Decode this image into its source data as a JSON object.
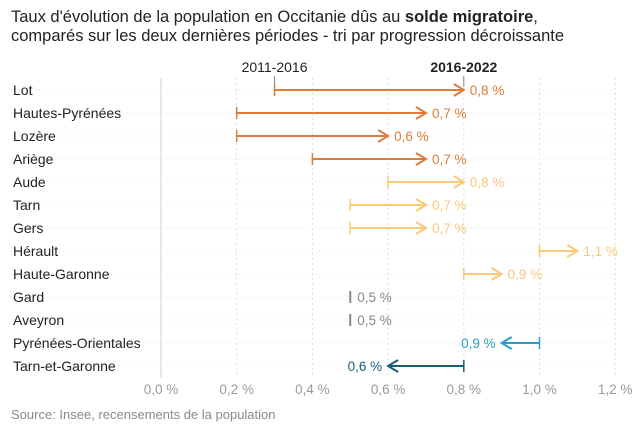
{
  "title": {
    "part1": "Taux d'évolution de la population en Occitanie dûs au ",
    "bold": "solde migratoire",
    "part2": ",",
    "line2": "comparés sur les deux dernières périodes - tri par progression décroissante"
  },
  "source": "Source: Insee, recensements de la population",
  "colors": {
    "dark_orange": "#e07b39",
    "light_orange": "#fbc97a",
    "gray": "#888888",
    "light_blue": "#2a9fc4",
    "dark_blue": "#1a5b7a",
    "grid": "#dddddd"
  },
  "chart_data": {
    "type": "dumbbell-arrow",
    "period_labels": {
      "start": "2011-2016",
      "end": "2016-2022"
    },
    "x_ticks": [
      "0,0 %",
      "0,2 %",
      "0,4 %",
      "0,6 %",
      "0,8 %",
      "1,0 %",
      "1,2 %"
    ],
    "xlim": [
      0,
      1.2
    ],
    "grid": "vertical dotted",
    "rows": [
      {
        "name": "Lot",
        "start": 0.3,
        "end": 0.8,
        "label": "0,8 %",
        "color": "dark_orange"
      },
      {
        "name": "Hautes-Pyrénées",
        "start": 0.2,
        "end": 0.7,
        "label": "0,7 %",
        "color": "dark_orange"
      },
      {
        "name": "Lozère",
        "start": 0.2,
        "end": 0.6,
        "label": "0,6 %",
        "color": "dark_orange"
      },
      {
        "name": "Ariège",
        "start": 0.4,
        "end": 0.7,
        "label": "0,7 %",
        "color": "dark_orange"
      },
      {
        "name": "Aude",
        "start": 0.6,
        "end": 0.8,
        "label": "0,8 %",
        "color": "light_orange"
      },
      {
        "name": "Tarn",
        "start": 0.5,
        "end": 0.7,
        "label": "0,7 %",
        "color": "light_orange"
      },
      {
        "name": "Gers",
        "start": 0.5,
        "end": 0.7,
        "label": "0,7 %",
        "color": "light_orange"
      },
      {
        "name": "Hérault",
        "start": 1.0,
        "end": 1.1,
        "label": "1,1 %",
        "color": "light_orange"
      },
      {
        "name": "Haute-Garonne",
        "start": 0.8,
        "end": 0.9,
        "label": "0,9 %",
        "color": "light_orange"
      },
      {
        "name": "Gard",
        "start": 0.5,
        "end": 0.5,
        "label": "0,5 %",
        "color": "gray"
      },
      {
        "name": "Aveyron",
        "start": 0.5,
        "end": 0.5,
        "label": "0,5 %",
        "color": "gray"
      },
      {
        "name": "Pyrénées-Orientales",
        "start": 1.0,
        "end": 0.9,
        "label": "0,9 %",
        "color": "light_blue"
      },
      {
        "name": "Tarn-et-Garonne",
        "start": 0.8,
        "end": 0.6,
        "label": "0,6 %",
        "color": "dark_blue"
      }
    ]
  }
}
